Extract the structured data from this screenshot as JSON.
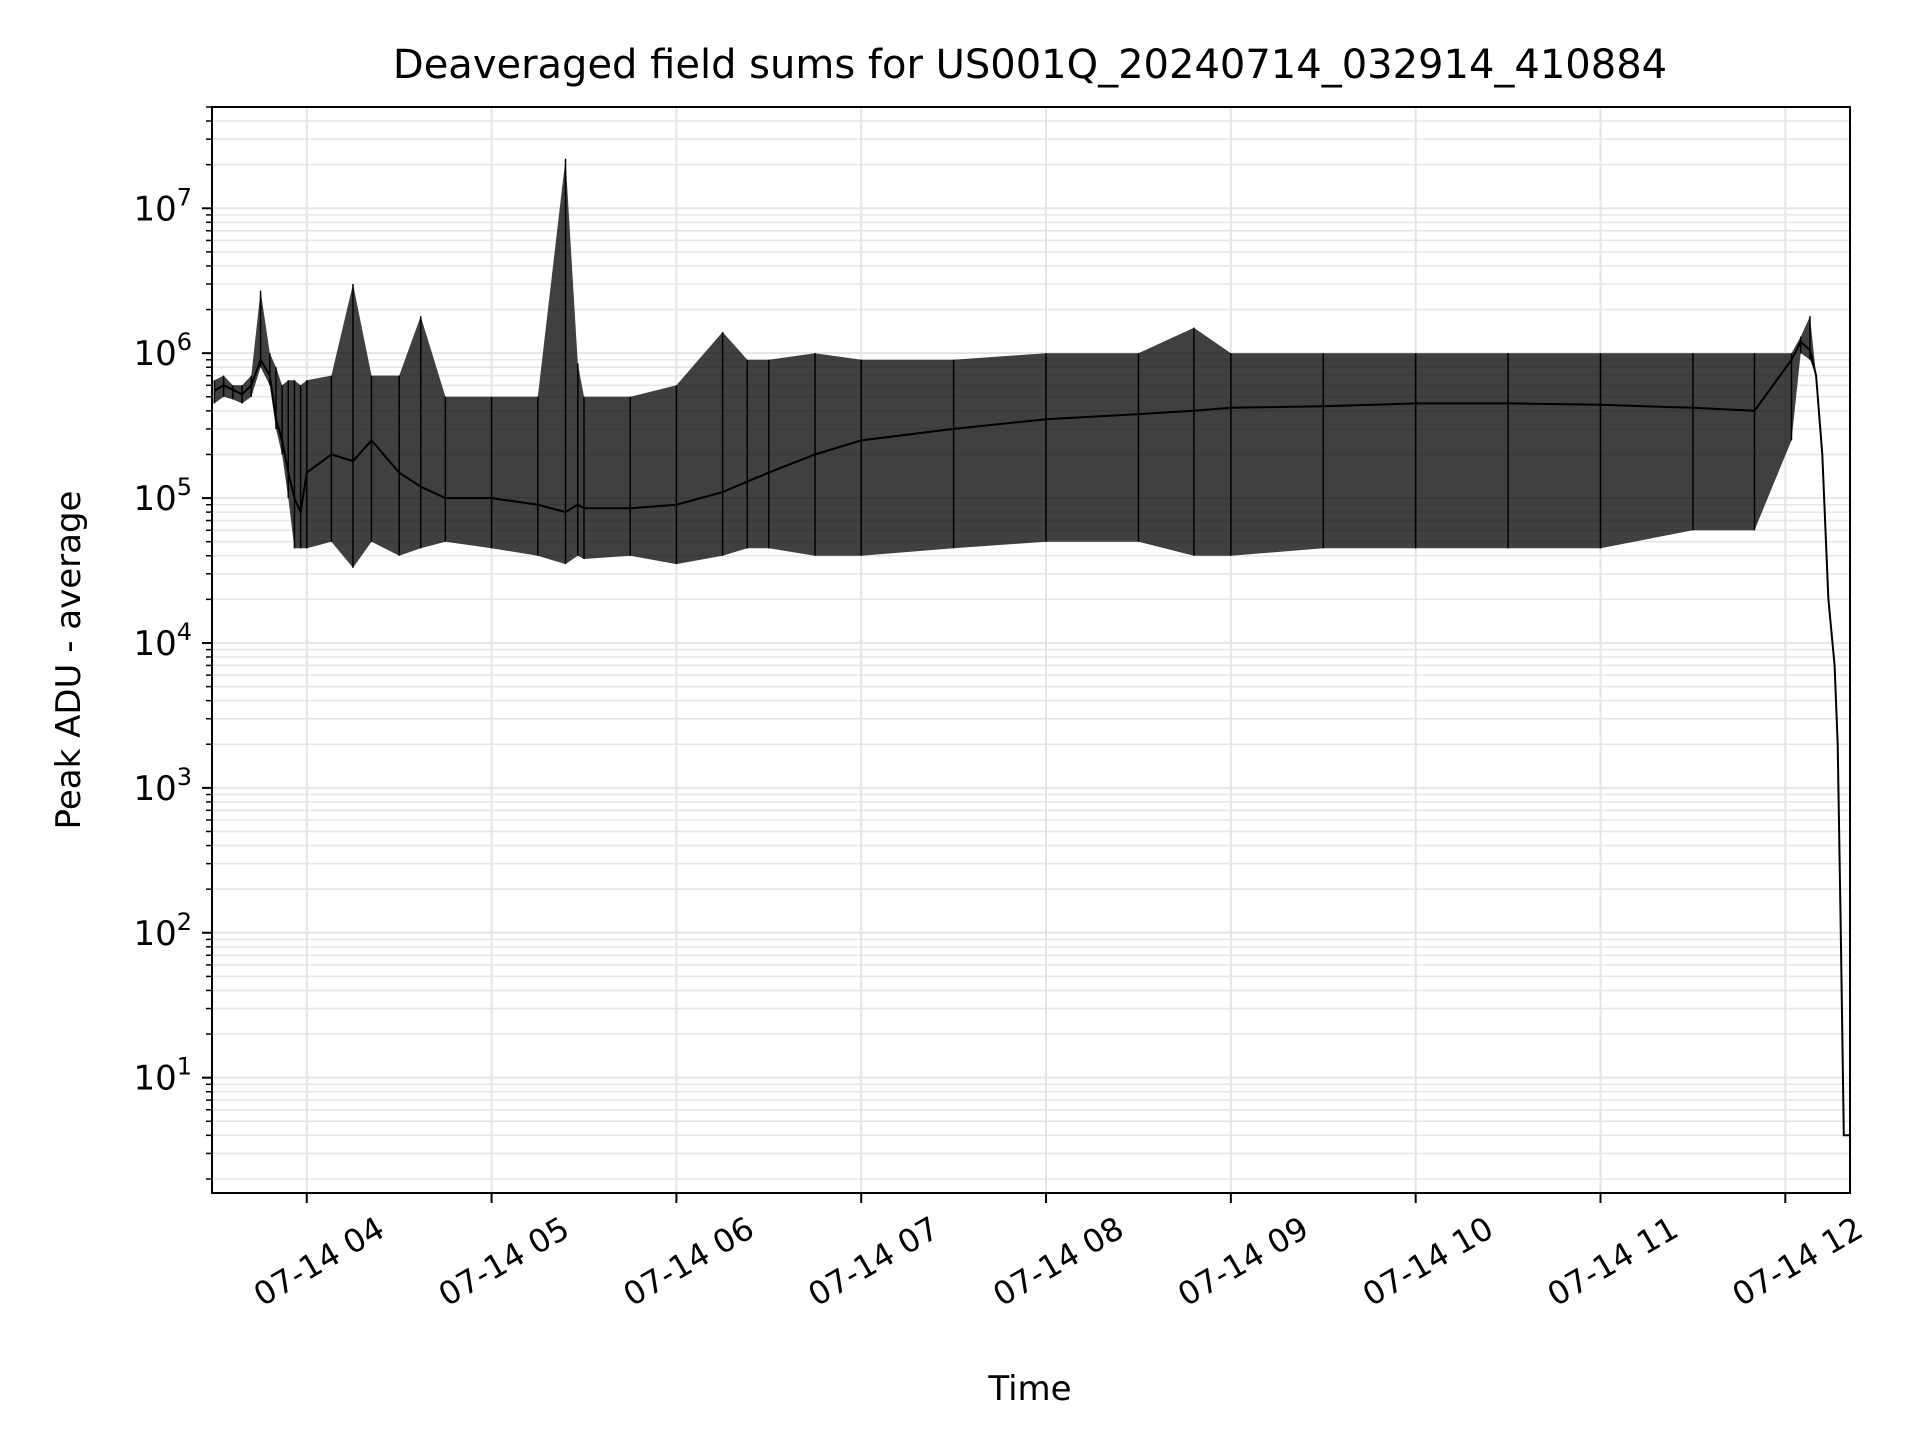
{
  "chart_data": {
    "type": "line",
    "title": "Deaveraged field sums for US001Q_20240714_032914_410884",
    "xlabel": "Time",
    "ylabel": "Peak ADU - average",
    "yscale": "log",
    "ylim": [
      1.6,
      50000000
    ],
    "xlim": [
      "2024-07-14 03:29:14",
      "2024-07-14 12:21:00"
    ],
    "x_tick_labels": [
      "07-14 04",
      "07-14 05",
      "07-14 06",
      "07-14 07",
      "07-14 08",
      "07-14 09",
      "07-14 10",
      "07-14 11",
      "07-14 12"
    ],
    "x_tick_values": [
      "2024-07-14 04:00",
      "2024-07-14 05:00",
      "2024-07-14 06:00",
      "2024-07-14 07:00",
      "2024-07-14 08:00",
      "2024-07-14 09:00",
      "2024-07-14 10:00",
      "2024-07-14 11:00",
      "2024-07-14 12:00"
    ],
    "y_tick_values": [
      10,
      100,
      1000,
      10000,
      100000,
      1000000,
      10000000
    ],
    "grid": true,
    "line_color": "#000000",
    "grid_color": "#e5e5e5",
    "series": [
      {
        "x": [
          "2024-07-14 03:30",
          "2024-07-14 03:33",
          "2024-07-14 03:36",
          "2024-07-14 03:39",
          "2024-07-14 03:42",
          "2024-07-14 03:45",
          "2024-07-14 03:48",
          "2024-07-14 03:50",
          "2024-07-14 03:52",
          "2024-07-14 03:54",
          "2024-07-14 03:56",
          "2024-07-14 03:58",
          "2024-07-14 04:00",
          "2024-07-14 04:08",
          "2024-07-14 04:15",
          "2024-07-14 04:21",
          "2024-07-14 04:30",
          "2024-07-14 04:37",
          "2024-07-14 04:45",
          "2024-07-14 05:00",
          "2024-07-14 05:15",
          "2024-07-14 05:24",
          "2024-07-14 05:28",
          "2024-07-14 05:30",
          "2024-07-14 05:45",
          "2024-07-14 06:00",
          "2024-07-14 06:15",
          "2024-07-14 06:23",
          "2024-07-14 06:30",
          "2024-07-14 06:45",
          "2024-07-14 07:00",
          "2024-07-14 07:30",
          "2024-07-14 08:00",
          "2024-07-14 08:30",
          "2024-07-14 08:48",
          "2024-07-14 09:00",
          "2024-07-14 09:30",
          "2024-07-14 10:00",
          "2024-07-14 10:30",
          "2024-07-14 11:00",
          "2024-07-14 11:30",
          "2024-07-14 11:50",
          "2024-07-14 12:02",
          "2024-07-14 12:05",
          "2024-07-14 12:08",
          "2024-07-14 12:10",
          "2024-07-14 12:12",
          "2024-07-14 12:14",
          "2024-07-14 12:16",
          "2024-07-14 12:17",
          "2024-07-14 12:18",
          "2024-07-14 12:19",
          "2024-07-14 12:20",
          "2024-07-14 12:21"
        ],
        "y": [
          550000,
          600000,
          560000,
          520000,
          600000,
          900000,
          700000,
          350000,
          250000,
          150000,
          100000,
          80000,
          150000,
          200000,
          180000,
          250000,
          150000,
          120000,
          100000,
          100000,
          90000,
          80000,
          90000,
          85000,
          85000,
          90000,
          110000,
          130000,
          150000,
          200000,
          250000,
          300000,
          350000,
          380000,
          400000,
          420000,
          430000,
          450000,
          450000,
          440000,
          420000,
          400000,
          900000,
          1200000,
          1050000,
          700000,
          200000,
          20000,
          7000,
          2000,
          100,
          4,
          4,
          4
        ]
      }
    ],
    "fluctuation_max": [
      650000,
      700000,
      600000,
      600000,
      700000,
      2700000,
      1000000,
      800000,
      600000,
      650000,
      650000,
      600000,
      650000,
      700000,
      3000000,
      700000,
      700000,
      1800000,
      500000,
      500000,
      500000,
      22000000,
      850000,
      500000,
      500000,
      600000,
      1400000,
      900000,
      900000,
      1000000,
      900000,
      900000,
      1000000,
      1000000,
      1500000,
      1000000,
      1000000,
      1000000,
      1000000,
      1000000,
      1000000,
      1000000,
      1000000,
      1300000,
      1800000,
      700000,
      200000,
      20000,
      7000,
      2000,
      100,
      4,
      4,
      4
    ],
    "fluctuation_min": [
      450000,
      500000,
      480000,
      450000,
      500000,
      800000,
      600000,
      300000,
      200000,
      100000,
      45000,
      45000,
      45000,
      50000,
      33000,
      50000,
      40000,
      45000,
      50000,
      45000,
      40000,
      35000,
      40000,
      38000,
      40000,
      35000,
      40000,
      45000,
      45000,
      40000,
      40000,
      45000,
      50000,
      50000,
      40000,
      40000,
      45000,
      45000,
      45000,
      45000,
      60000,
      60000,
      250000,
      1000000,
      900000,
      700000,
      200000,
      20000,
      7000,
      2000,
      100,
      4,
      4,
      4
    ]
  }
}
